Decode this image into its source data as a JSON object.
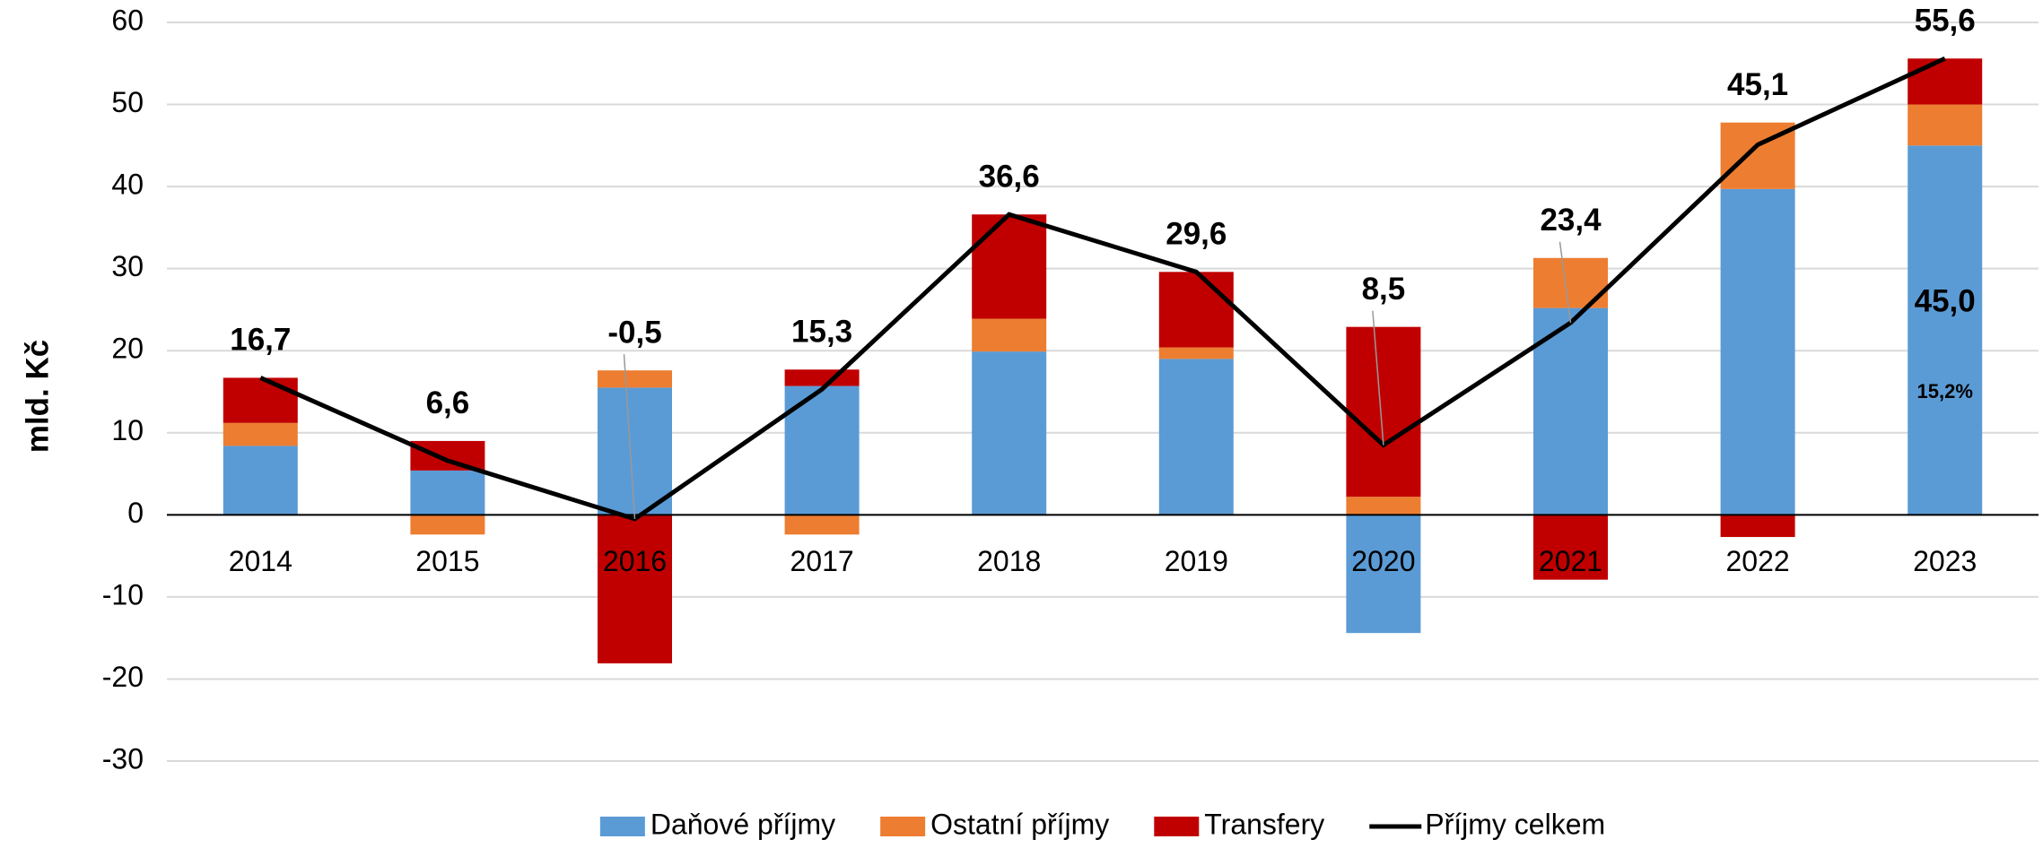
{
  "chart_data": {
    "type": "bar",
    "y_label": "mld. Kč",
    "categories": [
      "2014",
      "2015",
      "2016",
      "2017",
      "2018",
      "2019",
      "2020",
      "2021",
      "2022",
      "2023"
    ],
    "series": [
      {
        "name": "Daňové příjmy",
        "color": "#5b9bd5",
        "values": [
          8.4,
          5.4,
          15.5,
          15.7,
          19.9,
          19.0,
          -14.4,
          25.2,
          39.7,
          45.0
        ],
        "value_labels": [
          null,
          null,
          null,
          null,
          null,
          null,
          null,
          null,
          null,
          "45,0"
        ]
      },
      {
        "name": "Ostatní příjmy",
        "color": "#ed7d31",
        "values": [
          2.8,
          -2.4,
          2.1,
          -2.4,
          4.0,
          1.4,
          2.2,
          6.1,
          8.1,
          5.0
        ]
      },
      {
        "name": "Transfery",
        "color": "#c00000",
        "values": [
          5.5,
          3.6,
          -18.1,
          2.0,
          12.7,
          9.2,
          20.7,
          -7.9,
          -2.7,
          5.6
        ]
      },
      {
        "name": "Příjmy celkem",
        "type": "line",
        "color": "#000000",
        "values": [
          16.7,
          6.6,
          -0.5,
          15.3,
          36.6,
          29.6,
          8.5,
          23.4,
          45.1,
          55.6
        ],
        "value_labels": [
          "16,7",
          "6,6",
          "-0,5",
          "15,3",
          "36,6",
          "29,6",
          "8,5",
          "23,4",
          "45,1",
          "55,6"
        ]
      }
    ],
    "annotations": [
      "15,2%"
    ],
    "ylim": [
      -30,
      60
    ],
    "yticks": [
      -30,
      -20,
      -10,
      0,
      10,
      20,
      30,
      40,
      50,
      60
    ],
    "grid": true,
    "legend": "bottom"
  }
}
